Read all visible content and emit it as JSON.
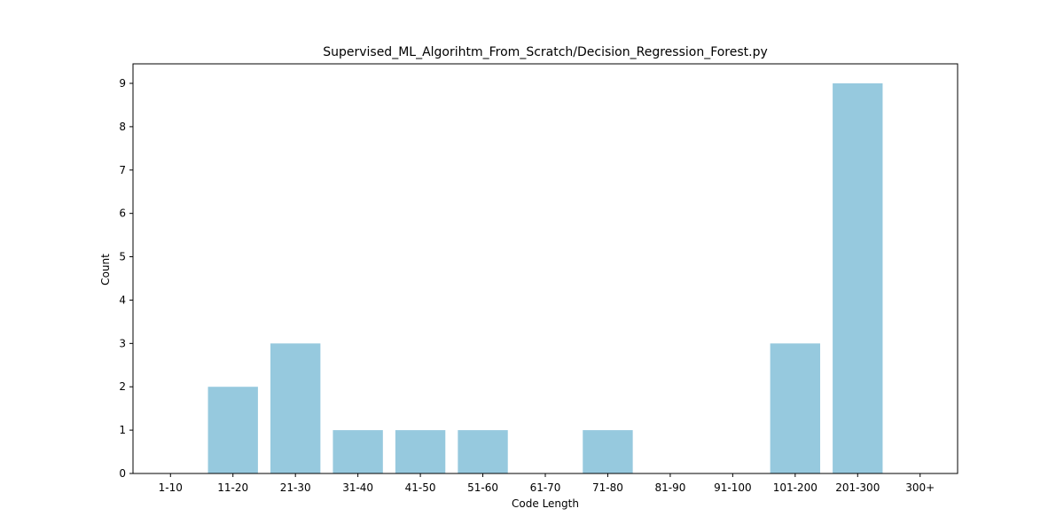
{
  "chart_data": {
    "type": "bar",
    "title": "Supervised_ML_Algorihtm_From_Scratch/Decision_Regression_Forest.py",
    "xlabel": "Code Length",
    "ylabel": "Count",
    "categories": [
      "1-10",
      "11-20",
      "21-30",
      "31-40",
      "41-50",
      "51-60",
      "61-70",
      "71-80",
      "81-90",
      "91-100",
      "101-200",
      "201-300",
      "300+"
    ],
    "values": [
      0,
      2,
      3,
      1,
      1,
      1,
      0,
      1,
      0,
      0,
      3,
      9,
      0
    ],
    "ylim": [
      0,
      9.45
    ],
    "yticks": [
      0,
      1,
      2,
      3,
      4,
      5,
      6,
      7,
      8,
      9
    ],
    "bar_color": "#96c9de",
    "grid": false,
    "legend": "none"
  }
}
